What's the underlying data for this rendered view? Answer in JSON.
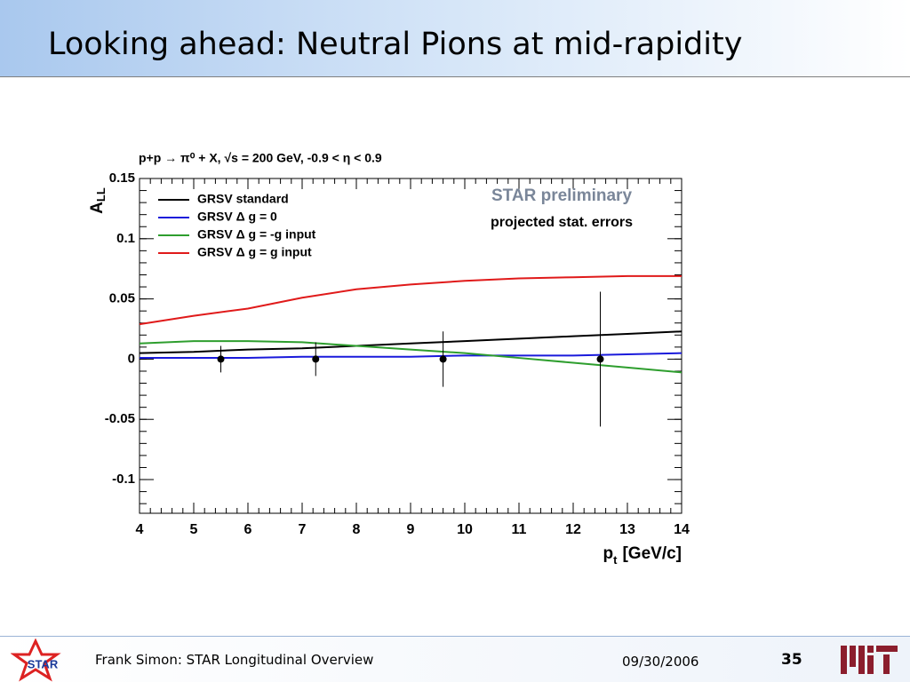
{
  "header": {
    "title": "Looking ahead: Neutral Pions at mid-rapidity"
  },
  "footer": {
    "author": "Frank Simon: STAR Longitudinal Overview",
    "date": "09/30/2006",
    "page": "35",
    "logo_text": "STAR"
  },
  "chart_data": {
    "type": "line",
    "title": "p+p → π⁰ + X, √s = 200 GeV, -0.9 < η < 0.9",
    "y_label": "A",
    "y_label_sub": "LL",
    "x_label": "p",
    "x_label_sub": "t",
    "x_label_unit": "[GeV/c]",
    "annotations": [
      "STAR preliminary",
      "projected stat. errors"
    ],
    "x": [
      4,
      5,
      6,
      7,
      8,
      9,
      10,
      11,
      12,
      13,
      14
    ],
    "series": [
      {
        "name": "GRSV standard",
        "color": "#000000",
        "values": [
          0.005,
          0.006,
          0.008,
          0.009,
          0.011,
          0.013,
          0.015,
          0.017,
          0.019,
          0.021,
          0.023
        ]
      },
      {
        "name": "GRSV Δ g = 0",
        "color": "#1a1adb",
        "values": [
          0.001,
          0.001,
          0.001,
          0.002,
          0.002,
          0.002,
          0.003,
          0.003,
          0.003,
          0.004,
          0.005
        ]
      },
      {
        "name": "GRSV Δ g = -g input",
        "color": "#2e9e2e",
        "values": [
          0.013,
          0.015,
          0.015,
          0.014,
          0.011,
          0.008,
          0.005,
          0.001,
          -0.003,
          -0.007,
          -0.011
        ]
      },
      {
        "name": "GRSV Δ g = g input",
        "color": "#e01a1a",
        "values": [
          0.029,
          0.036,
          0.042,
          0.051,
          0.058,
          0.062,
          0.065,
          0.067,
          0.068,
          0.069,
          0.069
        ]
      }
    ],
    "points": {
      "color": "#000000",
      "x": [
        5.5,
        7.25,
        9.6,
        12.5
      ],
      "values": [
        0,
        0,
        0,
        0
      ],
      "errors": [
        0.011,
        0.014,
        0.023,
        0.056
      ]
    },
    "xlim": [
      4,
      14
    ],
    "xticks": [
      4,
      5,
      6,
      7,
      8,
      9,
      10,
      11,
      12,
      13,
      14
    ],
    "ylim": [
      -0.128,
      0.15
    ],
    "yticks": [
      -0.1,
      -0.05,
      0,
      0.05,
      0.1,
      0.15
    ],
    "grid": false,
    "legend": "top-left"
  }
}
